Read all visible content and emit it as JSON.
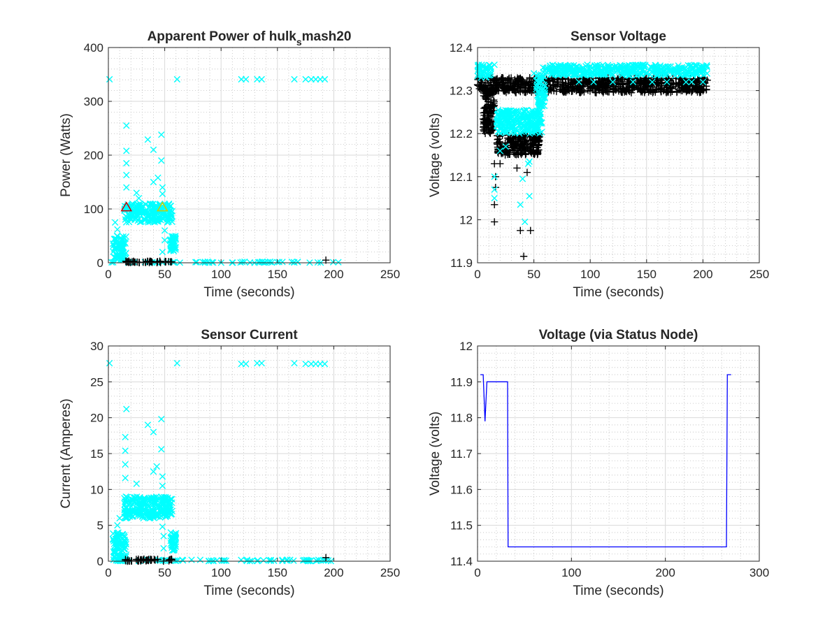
{
  "chart_data": [
    {
      "id": "power",
      "type": "scatter",
      "title": "Apparent Power of hulk",
      "title_subscript": "s",
      "title_suffix": "mash20",
      "xlabel": "Time (seconds)",
      "ylabel": "Power (Watts)",
      "xlim": [
        0,
        250
      ],
      "ylim": [
        0,
        400
      ],
      "xticks": [
        "0",
        "50",
        "100",
        "150",
        "200",
        "250"
      ],
      "yticks": [
        "0",
        "100",
        "200",
        "300",
        "400"
      ],
      "grid": true,
      "minor_grid": true,
      "series": [
        {
          "marker": "x",
          "color": "#00ffff",
          "bands": [
            {
              "x": [
                0,
                205
              ],
              "y": [
                0,
                2
              ]
            },
            {
              "x": [
                4,
                16
              ],
              "y": [
                5,
                50
              ]
            },
            {
              "x": [
                14,
                57
              ],
              "y": [
                75,
                110
              ]
            },
            {
              "x": [
                55,
                60
              ],
              "y": [
                20,
                50
              ]
            }
          ],
          "points": [
            [
              1,
              341
            ],
            [
              61,
              341
            ],
            [
              118,
              341
            ],
            [
              122,
              341
            ],
            [
              132,
              341
            ],
            [
              136,
              341
            ],
            [
              165,
              341
            ],
            [
              175,
              341
            ],
            [
              180,
              341
            ],
            [
              184,
              341
            ],
            [
              188,
              341
            ],
            [
              192,
              341
            ],
            [
              16,
              255
            ],
            [
              16,
              208
            ],
            [
              16,
              185
            ],
            [
              16,
              163
            ],
            [
              16,
              140
            ],
            [
              35,
              229
            ],
            [
              40,
              210
            ],
            [
              47,
              238
            ],
            [
              47,
              190
            ],
            [
              44,
              158
            ],
            [
              40,
              150
            ],
            [
              48,
              140
            ],
            [
              48,
              128
            ],
            [
              50,
              60
            ],
            [
              50,
              42
            ],
            [
              48,
              20
            ],
            [
              25,
              130
            ],
            [
              27,
              120
            ],
            [
              6,
              75
            ],
            [
              8,
              62
            ]
          ]
        },
        {
          "marker": "+",
          "color": "#000000",
          "bands": [
            {
              "x": [
                15,
                57
              ],
              "y": [
                0,
                3
              ]
            }
          ],
          "points": [
            [
              193,
              5
            ]
          ]
        },
        {
          "marker": "triangle",
          "color": "#cc0000",
          "points": [
            [
              16,
              103
            ]
          ]
        },
        {
          "marker": "triangle",
          "color": "#cccc00",
          "points": [
            [
              48,
              103
            ]
          ]
        }
      ]
    },
    {
      "id": "voltage",
      "type": "scatter",
      "title": "Sensor Voltage",
      "xlabel": "Time (seconds)",
      "ylabel": "Voltage (volts)",
      "xlim": [
        0,
        250
      ],
      "ylim": [
        11.9,
        12.4
      ],
      "xticks": [
        "0",
        "50",
        "100",
        "150",
        "200",
        "250"
      ],
      "yticks": [
        "11.9",
        "12",
        "12.1",
        "12.2",
        "12.3",
        "12.4"
      ],
      "grid": true,
      "minor_grid": true,
      "series": [
        {
          "marker": "+",
          "color": "#000000",
          "bands": [
            {
              "x": [
                0,
                204
              ],
              "y": [
                12.295,
                12.33
              ]
            },
            {
              "x": [
                17,
                55
              ],
              "y": [
                12.15,
                12.2
              ]
            },
            {
              "x": [
                5,
                15
              ],
              "y": [
                12.2,
                12.3
              ]
            }
          ],
          "points": [
            [
              15,
              12.13
            ],
            [
              15,
              11.995
            ],
            [
              15,
              12.035
            ],
            [
              16,
              12.1
            ],
            [
              16,
              12.075
            ],
            [
              38,
              11.975
            ],
            [
              47,
              11.975
            ],
            [
              41,
              11.915
            ],
            [
              44,
              12.11
            ],
            [
              35,
              12.12
            ],
            [
              48,
              12.3
            ],
            [
              10,
              12.23
            ],
            [
              20,
              12.13
            ]
          ]
        },
        {
          "marker": "x",
          "color": "#00ffff",
          "bands": [
            {
              "x": [
                58,
                204
              ],
              "y": [
                12.335,
                12.36
              ]
            },
            {
              "x": [
                0,
                12
              ],
              "y": [
                12.33,
                12.36
              ]
            },
            {
              "x": [
                17,
                57
              ],
              "y": [
                12.2,
                12.255
              ]
            },
            {
              "x": [
                52,
                60
              ],
              "y": [
                12.26,
                12.34
              ]
            }
          ],
          "points": [
            [
              90,
              12.32
            ],
            [
              103,
              12.32
            ],
            [
              120,
              12.32
            ],
            [
              138,
              12.32
            ],
            [
              155,
              12.32
            ],
            [
              168,
              12.32
            ],
            [
              185,
              12.32
            ],
            [
              190,
              12.32
            ],
            [
              200,
              12.32
            ],
            [
              15,
              12.36
            ],
            [
              15,
              12.1
            ],
            [
              15,
              12.07
            ],
            [
              15,
              12.05
            ],
            [
              38,
              12.035
            ],
            [
              40,
              12.095
            ],
            [
              42,
              11.995
            ],
            [
              46,
              12.055
            ],
            [
              46,
              12.135
            ],
            [
              50,
              12.34
            ],
            [
              20,
              12.16
            ],
            [
              25,
              12.17
            ],
            [
              45,
              12.13
            ]
          ]
        }
      ]
    },
    {
      "id": "current",
      "type": "scatter",
      "title": "Sensor Current",
      "xlabel": "Time (seconds)",
      "ylabel": "Current (Amperes)",
      "xlim": [
        0,
        250
      ],
      "ylim": [
        0,
        30
      ],
      "xticks": [
        "0",
        "50",
        "100",
        "150",
        "200",
        "250"
      ],
      "yticks": [
        "0",
        "5",
        "10",
        "15",
        "20",
        "25",
        "30"
      ],
      "grid": true,
      "minor_grid": true,
      "series": [
        {
          "marker": "x",
          "color": "#00ffff",
          "bands": [
            {
              "x": [
                0,
                205
              ],
              "y": [
                0,
                0.2
              ]
            },
            {
              "x": [
                4,
                16
              ],
              "y": [
                0.5,
                4
              ]
            },
            {
              "x": [
                14,
                57
              ],
              "y": [
                6,
                9
              ]
            },
            {
              "x": [
                55,
                60
              ],
              "y": [
                1.5,
                4
              ]
            }
          ],
          "points": [
            [
              1,
              27.6
            ],
            [
              61,
              27.6
            ],
            [
              118,
              27.5
            ],
            [
              122,
              27.5
            ],
            [
              132,
              27.6
            ],
            [
              136,
              27.6
            ],
            [
              165,
              27.6
            ],
            [
              175,
              27.5
            ],
            [
              180,
              27.5
            ],
            [
              184,
              27.5
            ],
            [
              188,
              27.5
            ],
            [
              192,
              27.5
            ],
            [
              16,
              21.2
            ],
            [
              15,
              17.3
            ],
            [
              15,
              15.4
            ],
            [
              15,
              13.5
            ],
            [
              15,
              11.6
            ],
            [
              35,
              19.0
            ],
            [
              40,
              18.0
            ],
            [
              47,
              19.8
            ],
            [
              47,
              15.6
            ],
            [
              43,
              13.2
            ],
            [
              40,
              12.5
            ],
            [
              48,
              11.8
            ],
            [
              48,
              10.5
            ],
            [
              48,
              4.8
            ],
            [
              49,
              3.5
            ],
            [
              49,
              1.8
            ],
            [
              25,
              10.8
            ],
            [
              10,
              6.0
            ],
            [
              8,
              5.0
            ]
          ]
        },
        {
          "marker": "+",
          "color": "#000000",
          "bands": [
            {
              "x": [
                15,
                57
              ],
              "y": [
                0,
                0.3
              ]
            }
          ],
          "points": [
            [
              193,
              0.5
            ]
          ]
        }
      ]
    },
    {
      "id": "status-voltage",
      "type": "line",
      "title": "Voltage (via Status Node)",
      "xlabel": "Time (seconds)",
      "ylabel": "Voltage (volts)",
      "xlim": [
        0,
        300
      ],
      "ylim": [
        11.4,
        12
      ],
      "xticks": [
        "0",
        "100",
        "200",
        "300"
      ],
      "yticks": [
        "11.4",
        "11.5",
        "11.6",
        "11.7",
        "11.8",
        "11.9",
        "12"
      ],
      "grid": true,
      "minor_grid": true,
      "series": [
        {
          "color": "#0000ff",
          "x": [
            3,
            6,
            8,
            10,
            12,
            32,
            32.5,
            265,
            266,
            267,
            270
          ],
          "y": [
            11.92,
            11.92,
            11.79,
            11.9,
            11.9,
            11.9,
            11.44,
            11.44,
            11.92,
            11.92,
            11.92
          ]
        }
      ]
    }
  ]
}
